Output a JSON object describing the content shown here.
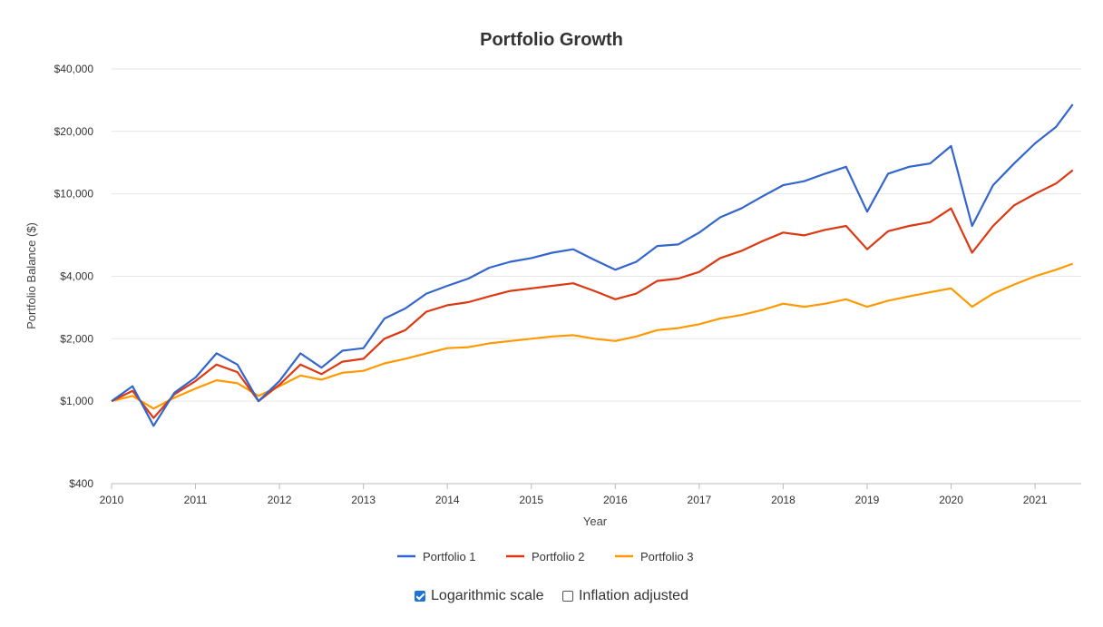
{
  "chart_data": {
    "type": "line",
    "title": "Portfolio Growth",
    "xlabel": "Year",
    "ylabel": "Portfolio Balance ($)",
    "y_scale": "log",
    "ylim": [
      400,
      40000
    ],
    "xlim": [
      2010,
      2021.55
    ],
    "grid": true,
    "legend_position": "bottom",
    "y_ticks": [
      {
        "value": 400,
        "label": "$400"
      },
      {
        "value": 1000,
        "label": "$1,000"
      },
      {
        "value": 2000,
        "label": "$2,000"
      },
      {
        "value": 4000,
        "label": "$4,000"
      },
      {
        "value": 10000,
        "label": "$10,000"
      },
      {
        "value": 20000,
        "label": "$20,000"
      },
      {
        "value": 40000,
        "label": "$40,000"
      }
    ],
    "x_ticks": [
      "2010",
      "2011",
      "2012",
      "2013",
      "2014",
      "2015",
      "2016",
      "2017",
      "2018",
      "2019",
      "2020",
      "2021"
    ],
    "x": [
      2010.0,
      2010.25,
      2010.5,
      2010.75,
      2011.0,
      2011.25,
      2011.5,
      2011.75,
      2012.0,
      2012.25,
      2012.5,
      2012.75,
      2013.0,
      2013.25,
      2013.5,
      2013.75,
      2014.0,
      2014.25,
      2014.5,
      2014.75,
      2015.0,
      2015.25,
      2015.5,
      2015.75,
      2016.0,
      2016.25,
      2016.5,
      2016.75,
      2017.0,
      2017.25,
      2017.5,
      2017.75,
      2018.0,
      2018.25,
      2018.5,
      2018.75,
      2019.0,
      2019.25,
      2019.5,
      2019.75,
      2020.0,
      2020.25,
      2020.5,
      2020.75,
      2021.0,
      2021.25,
      2021.45
    ],
    "series": [
      {
        "name": "Portfolio 1",
        "color": "#3366cc",
        "values": [
          1000,
          1180,
          760,
          1100,
          1300,
          1700,
          1500,
          1000,
          1250,
          1700,
          1450,
          1750,
          1800,
          2500,
          2800,
          3300,
          3600,
          3900,
          4400,
          4700,
          4900,
          5200,
          5400,
          4800,
          4300,
          4700,
          5600,
          5700,
          6500,
          7700,
          8500,
          9700,
          11000,
          11500,
          12500,
          13500,
          8200,
          12500,
          13500,
          14000,
          17000,
          7000,
          11000,
          14000,
          17500,
          21000,
          27000
        ]
      },
      {
        "name": "Portfolio 2",
        "color": "#dc3912",
        "values": [
          1000,
          1120,
          830,
          1080,
          1250,
          1500,
          1380,
          1000,
          1200,
          1500,
          1350,
          1550,
          1600,
          2000,
          2200,
          2700,
          2900,
          3000,
          3200,
          3400,
          3500,
          3600,
          3700,
          3400,
          3100,
          3300,
          3800,
          3900,
          4200,
          4900,
          5300,
          5900,
          6500,
          6300,
          6700,
          7000,
          5400,
          6600,
          7000,
          7300,
          8500,
          5200,
          7000,
          8800,
          10000,
          11200,
          13000
        ]
      },
      {
        "name": "Portfolio 3",
        "color": "#ff9900",
        "values": [
          1000,
          1060,
          920,
          1040,
          1150,
          1260,
          1220,
          1060,
          1180,
          1330,
          1270,
          1370,
          1400,
          1520,
          1600,
          1700,
          1800,
          1820,
          1900,
          1950,
          2000,
          2050,
          2080,
          2000,
          1950,
          2050,
          2200,
          2250,
          2350,
          2500,
          2600,
          2750,
          2950,
          2850,
          2950,
          3100,
          2850,
          3050,
          3200,
          3350,
          3500,
          2850,
          3300,
          3650,
          4000,
          4300,
          4600
        ]
      }
    ]
  },
  "controls": {
    "log_scale": {
      "label": "Logarithmic scale",
      "checked": true
    },
    "inflation_adjusted": {
      "label": "Inflation adjusted",
      "checked": false
    }
  }
}
